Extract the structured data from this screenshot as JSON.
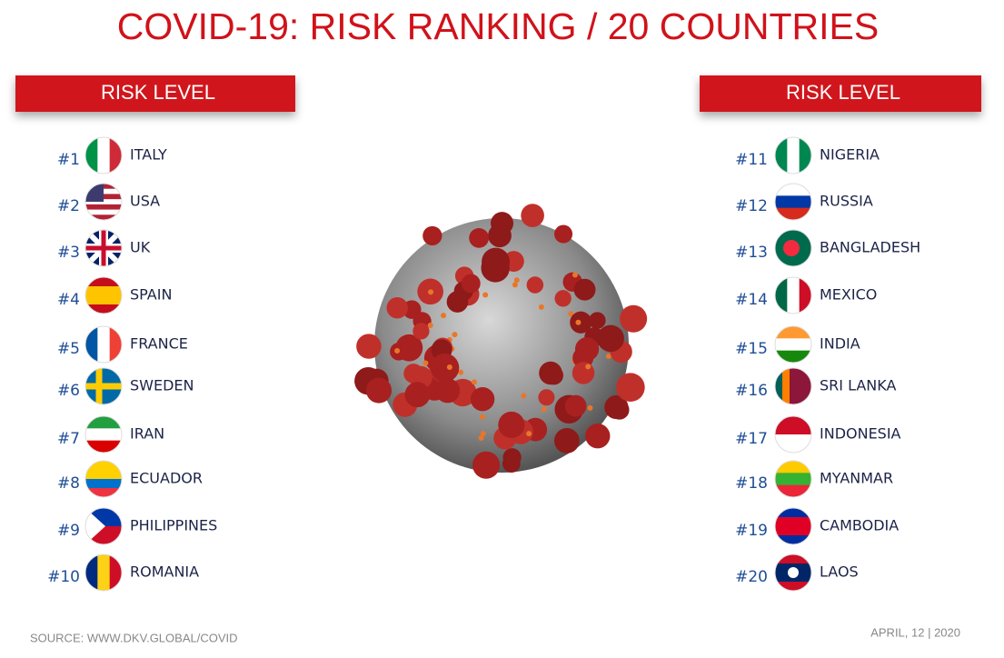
{
  "header": {
    "title": "COVID-19: RISK RANKING / 20 COUNTRIES"
  },
  "panels": [
    {
      "heading": "RISK LEVEL",
      "items": [
        {
          "rank": "#1",
          "country": "ITALY"
        },
        {
          "rank": "#2",
          "country": "USA"
        },
        {
          "rank": "#3",
          "country": "UK"
        },
        {
          "rank": "#4",
          "country": "SPAIN"
        },
        {
          "rank": "#5",
          "country": "FRANCE"
        },
        {
          "rank": "#6",
          "country": "SWEDEN"
        },
        {
          "rank": "#7",
          "country": "IRAN"
        },
        {
          "rank": "#8",
          "country": "ECUADOR"
        },
        {
          "rank": "#9",
          "country": "PHILIPPINES"
        },
        {
          "rank": "#10",
          "country": "ROMANIA"
        }
      ]
    },
    {
      "heading": "RISK LEVEL",
      "items": [
        {
          "rank": "#11",
          "country": "NIGERIA"
        },
        {
          "rank": "#12",
          "country": "RUSSIA"
        },
        {
          "rank": "#13",
          "country": "BANGLADESH"
        },
        {
          "rank": "#14",
          "country": "MEXICO"
        },
        {
          "rank": "#15",
          "country": "INDIA"
        },
        {
          "rank": "#16",
          "country": "SRI LANKA"
        },
        {
          "rank": "#17",
          "country": "INDONESIA"
        },
        {
          "rank": "#18",
          "country": "MYANMAR"
        },
        {
          "rank": "#19",
          "country": "CAMBODIA"
        },
        {
          "rank": "#20",
          "country": "LAOS"
        }
      ]
    }
  ],
  "footer": {
    "source": "SOURCE: WWW.DKV.GLOBAL/COVID",
    "date": "APRIL, 12 | 2020"
  }
}
